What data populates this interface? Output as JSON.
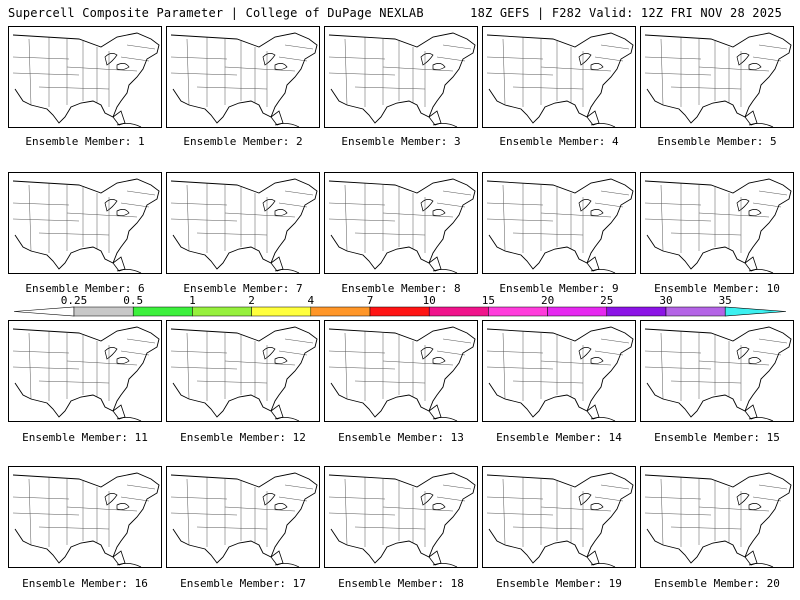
{
  "header": {
    "title": "Supercell Composite Parameter | College of DuPage NEXLAB",
    "run_info": "18Z GEFS | F282 Valid: 12Z FRI NOV 28 2025"
  },
  "member_label_prefix": "Ensemble Member: ",
  "members": [
    1,
    2,
    3,
    4,
    5,
    6,
    7,
    8,
    9,
    10,
    11,
    12,
    13,
    14,
    15,
    16,
    17,
    18,
    19,
    20
  ],
  "colorbar": {
    "thresholds": [
      "0.25",
      "0.5",
      "1",
      "2",
      "4",
      "7",
      "10",
      "15",
      "20",
      "25",
      "30",
      "35"
    ],
    "colors": [
      "#ffffff",
      "#c8c8c8",
      "#3cf03c",
      "#96f03c",
      "#ffff3c",
      "#ff9628",
      "#ff1414",
      "#f0148c",
      "#ff3cdc",
      "#e628f0",
      "#8c14e6",
      "#b464e6",
      "#3cf0f0"
    ]
  },
  "map_colors": {
    "border": "#555555",
    "coast": "#000000"
  }
}
